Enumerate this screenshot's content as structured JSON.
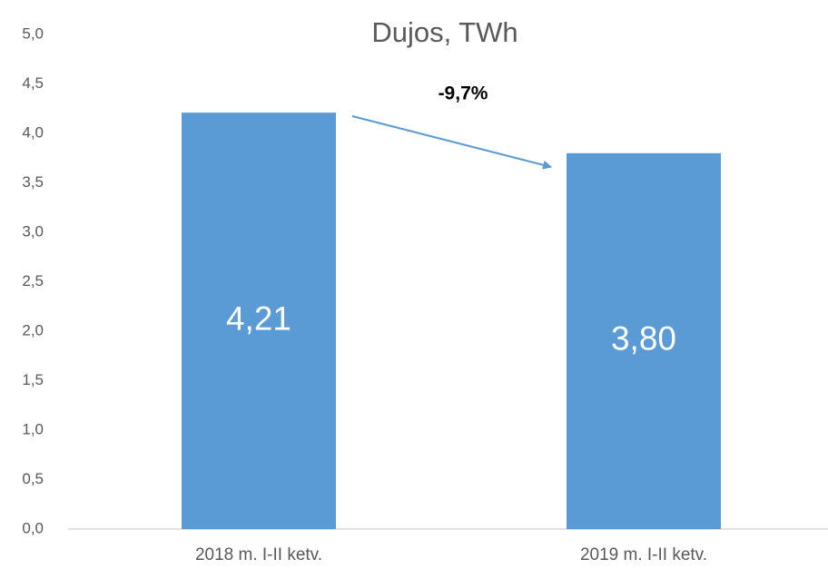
{
  "chart_data": {
    "type": "bar",
    "title": "Dujos, TWh",
    "categories": [
      "2018 m. I-II ketv.",
      "2019 m. I-II ketv."
    ],
    "values": [
      4.21,
      3.8
    ],
    "value_labels": [
      "4,21",
      "3,80"
    ],
    "color": "#5b9bd5",
    "ylim": [
      0,
      5
    ],
    "yticks": [
      {
        "value": 0,
        "label": "0,0"
      },
      {
        "value": 0.5,
        "label": "0,5"
      },
      {
        "value": 1,
        "label": "1,0"
      },
      {
        "value": 1.5,
        "label": "1,5"
      },
      {
        "value": 2,
        "label": "2,0"
      },
      {
        "value": 2.5,
        "label": "2,5"
      },
      {
        "value": 3,
        "label": "3,0"
      },
      {
        "value": 3.5,
        "label": "3,5"
      },
      {
        "value": 4,
        "label": "4,0"
      },
      {
        "value": 4.5,
        "label": "4,5"
      },
      {
        "value": 5,
        "label": "5,0"
      }
    ],
    "grid": false,
    "annotations": [
      "-9,7%"
    ]
  }
}
